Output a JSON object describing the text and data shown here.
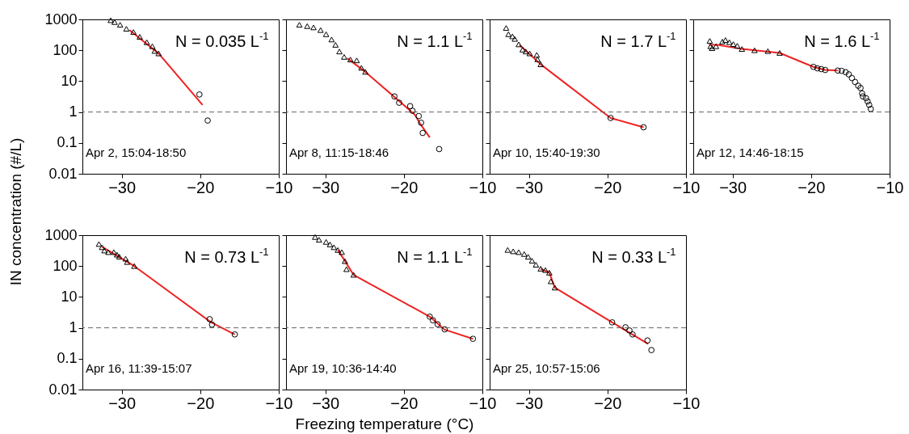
{
  "chart_data": [
    {
      "type": "scatter",
      "title": "N = 0.035 L$^{-1}$",
      "ylabel": "IN concentration (#/L)",
      "annotations": [
        "Apr 2, 15:04-18:50"
      ],
      "xlim": [
        -35,
        -10
      ],
      "xticks": [
        -30,
        -20,
        -10
      ],
      "ylim": [
        0.01,
        1000
      ],
      "yticks": [
        0.01,
        0.1,
        1,
        10,
        100,
        1000
      ],
      "log": "y",
      "ref_lines": [
        {
          "axis": "y",
          "value": 1,
          "color": "#666666",
          "line_style": "dashed"
        }
      ],
      "series": [
        {
          "type": "line",
          "color": "#ee2222",
          "marker": "none",
          "x": [
            -29.0,
            -25.3,
            -19.7
          ],
          "values": [
            450,
            79,
            1.7
          ]
        },
        {
          "type": "scatter",
          "marker": "triangle",
          "color": "#000000",
          "x": [
            -31.4,
            -30.9,
            -30.2,
            -29.4,
            -28.5,
            -27.7,
            -26.8,
            -26.1,
            -25.8,
            -25.3
          ],
          "values": [
            942,
            818,
            670,
            496,
            390,
            272,
            182,
            135,
            95,
            79
          ]
        },
        {
          "type": "scatter",
          "marker": "circle",
          "color": "#000000",
          "x": [
            -20.1,
            -19.05
          ],
          "values": [
            3.7,
            0.53
          ]
        }
      ]
    },
    {
      "type": "scatter",
      "title": "N = 1.1 L$^{-1}$",
      "annotations": [
        "Apr 8, 11:15-18:46"
      ],
      "xlim": [
        -35,
        -10
      ],
      "xticks": [
        -30,
        -20,
        -10
      ],
      "ylim": [
        0.01,
        1000
      ],
      "yticks": [
        0.01,
        0.1,
        1,
        10,
        100,
        1000
      ],
      "log": "y",
      "tick_labels": "x",
      "ref_lines": [
        {
          "axis": "y",
          "value": 1,
          "color": "#666666",
          "line_style": "dashed"
        }
      ],
      "series": [
        {
          "type": "line",
          "color": "#ee2222",
          "marker": "none",
          "x": [
            -27.2,
            -24.9,
            -18.6,
            -17.9,
            -16.7
          ],
          "values": [
            55,
            20,
            0.82,
            0.41,
            0.15
          ]
        },
        {
          "type": "scatter",
          "marker": "triangle",
          "color": "#000000",
          "x": [
            -33.3,
            -32.3,
            -31.5,
            -30.6,
            -29.9,
            -29.2,
            -28.7,
            -28.2,
            -27.6,
            -26.8,
            -26.0,
            -25.4,
            -24.9
          ],
          "values": [
            670,
            605,
            550,
            450,
            330,
            223,
            150,
            91,
            61,
            50,
            47,
            27,
            20
          ]
        },
        {
          "type": "scatter",
          "marker": "circle",
          "color": "#000000",
          "x": [
            -21.2,
            -20.6,
            -19.2,
            -18.9,
            -18.1,
            -17.8,
            -17.6,
            -15.5
          ],
          "values": [
            3.2,
            2.0,
            1.55,
            1.1,
            0.74,
            0.45,
            0.21,
            0.063
          ]
        }
      ]
    },
    {
      "type": "scatter",
      "title": "N = 1.7 L$^{-1}$",
      "annotations": [
        "Apr 10, 15:40-19:30"
      ],
      "xlim": [
        -35,
        -10
      ],
      "xticks": [
        -30,
        -20,
        -10
      ],
      "ylim": [
        0.01,
        1000
      ],
      "yticks": [
        0.01,
        0.1,
        1,
        10,
        100,
        1000
      ],
      "log": "y",
      "tick_labels": "x",
      "ref_lines": [
        {
          "axis": "y",
          "value": 1,
          "color": "#666666",
          "line_style": "dashed"
        }
      ],
      "series": [
        {
          "type": "line",
          "color": "#ee2222",
          "marker": "none",
          "x": [
            -31.2,
            -28.5,
            -19.6,
            -15.4
          ],
          "values": [
            150,
            35,
            0.64,
            0.32
          ]
        },
        {
          "type": "scatter",
          "marker": "triangle",
          "color": "#000000",
          "x": [
            -32.9,
            -32.6,
            -32.1,
            -31.8,
            -31.3,
            -30.8,
            -30.4,
            -29.9,
            -29.0,
            -28.9,
            -28.5
          ],
          "values": [
            527,
            331,
            282,
            233,
            155,
            105,
            91,
            79,
            71,
            51,
            35
          ]
        },
        {
          "type": "scatter",
          "marker": "circle",
          "color": "#000000",
          "x": [
            -19.6,
            -15.4
          ],
          "values": [
            0.64,
            0.32
          ]
        }
      ]
    },
    {
      "type": "scatter",
      "title": "N = 1.6 L$^{-1}$",
      "annotations": [
        "Apr 12, 14:46-18:15"
      ],
      "xlim": [
        -35,
        -10
      ],
      "xticks": [
        -30,
        -20,
        -10
      ],
      "ylim": [
        0.01,
        1000
      ],
      "yticks": [
        0.01,
        0.1,
        1,
        10,
        100,
        1000
      ],
      "log": "y",
      "tick_labels": "x",
      "ref_lines": [
        {
          "axis": "y",
          "value": 1,
          "color": "#666666",
          "line_style": "dashed"
        }
      ],
      "series": [
        {
          "type": "line",
          "color": "#ee2222",
          "marker": "none",
          "x": [
            -33.0,
            -31.9,
            -28.8,
            -24.0,
            -19.7,
            -18.2,
            -16.6
          ],
          "values": [
            150,
            150,
            110,
            82,
            29,
            23,
            22
          ]
        },
        {
          "type": "scatter",
          "marker": "triangle",
          "color": "#000000",
          "x": [
            -32.9,
            -32.8,
            -32.6,
            -32.1,
            -31.3,
            -30.9,
            -30.4,
            -29.9,
            -29.4,
            -28.8,
            -27.2,
            -25.5,
            -24.0
          ],
          "values": [
            201,
            135,
            117,
            135,
            190,
            214,
            182,
            158,
            140,
            110,
            100,
            94,
            82
          ]
        },
        {
          "type": "scatter",
          "marker": "circle",
          "color": "#000000",
          "x": [
            -19.7,
            -19.2,
            -18.7,
            -18.2,
            -16.6,
            -16.1,
            -15.6,
            -15.2,
            -14.8,
            -14.4,
            -14.0,
            -13.7,
            -13.5,
            -13.4,
            -13.0,
            -12.8,
            -12.6,
            -12.4
          ],
          "values": [
            29,
            26,
            24.5,
            23,
            22,
            21.5,
            19.5,
            16.6,
            12.6,
            9.4,
            7.1,
            6.0,
            4.0,
            3.2,
            2.8,
            2.2,
            1.7,
            1.26
          ]
        }
      ]
    },
    {
      "type": "scatter",
      "title": "N = 0.73 L$^{-1}$",
      "annotations": [
        "Apr 16, 11:39-15:07"
      ],
      "xlim": [
        -35,
        -10
      ],
      "xticks": [
        -30,
        -20,
        -10
      ],
      "ylim": [
        0.01,
        1000
      ],
      "yticks": [
        0.01,
        0.1,
        1,
        10,
        100,
        1000
      ],
      "log": "y",
      "ref_lines": [
        {
          "axis": "y",
          "value": 1,
          "color": "#666666",
          "line_style": "dashed"
        }
      ],
      "series": [
        {
          "type": "line",
          "color": "#ee2222",
          "marker": "none",
          "x": [
            -32.5,
            -28.4,
            -18.6,
            -15.6
          ],
          "values": [
            420,
            100,
            1.5,
            0.61
          ]
        },
        {
          "type": "scatter",
          "marker": "triangle",
          "color": "#000000",
          "x": [
            -32.9,
            -32.5,
            -32.2,
            -31.7,
            -31.0,
            -30.6,
            -30.3,
            -29.5,
            -29.3,
            -28.4
          ],
          "values": [
            517,
            407,
            318,
            282,
            282,
            233,
            201,
            173,
            135,
            100
          ]
        },
        {
          "type": "scatter",
          "marker": "circle",
          "color": "#000000",
          "x": [
            -18.8,
            -18.5,
            -15.6
          ],
          "values": [
            1.9,
            1.27,
            0.61
          ]
        }
      ]
    },
    {
      "type": "scatter",
      "title": "N = 1.1 L$^{-1}$",
      "xlabel": "Freezing temperature (°C)",
      "annotations": [
        "Apr 19, 10:36-14:40"
      ],
      "xlim": [
        -35,
        -10
      ],
      "xticks": [
        -30,
        -20,
        -10
      ],
      "ylim": [
        0.01,
        1000
      ],
      "yticks": [
        0.01,
        0.1,
        1,
        10,
        100,
        1000
      ],
      "log": "y",
      "tick_labels": "x",
      "ref_lines": [
        {
          "axis": "y",
          "value": 1,
          "color": "#666666",
          "line_style": "dashed"
        }
      ],
      "series": [
        {
          "type": "line",
          "color": "#ee2222",
          "marker": "none",
          "x": [
            -28.4,
            -27.6,
            -26.4,
            -16.7,
            -14.8,
            -11.2
          ],
          "values": [
            331,
            160,
            52,
            2.3,
            0.87,
            0.44
          ]
        },
        {
          "type": "scatter",
          "marker": "triangle",
          "color": "#000000",
          "x": [
            -31.3,
            -30.8,
            -29.9,
            -29.4,
            -28.9,
            -28.4,
            -27.9,
            -27.5,
            -27.3,
            -26.4
          ],
          "values": [
            870,
            710,
            605,
            500,
            407,
            331,
            282,
            144,
            79,
            52
          ]
        },
        {
          "type": "scatter",
          "marker": "circle",
          "color": "#000000",
          "x": [
            -16.7,
            -16.3,
            -15.7,
            -14.8,
            -11.2
          ],
          "values": [
            2.3,
            1.75,
            1.3,
            0.89,
            0.44
          ]
        }
      ]
    },
    {
      "type": "scatter",
      "title": "N = 0.33 L$^{-1}$",
      "annotations": [
        "Apr 25, 10:57-15:06"
      ],
      "xlim": [
        -35,
        -10
      ],
      "xticks": [
        -30,
        -20,
        -10
      ],
      "ylim": [
        0.01,
        1000
      ],
      "yticks": [
        0.01,
        0.1,
        1,
        10,
        100,
        1000
      ],
      "log": "y",
      "tick_labels": "x",
      "ref_lines": [
        {
          "axis": "y",
          "value": 1,
          "color": "#666666",
          "line_style": "dashed"
        }
      ],
      "series": [
        {
          "type": "line",
          "color": "#ee2222",
          "marker": "none",
          "x": [
            -28.5,
            -27.4,
            -26.7,
            -19.4,
            -14.8
          ],
          "values": [
            82,
            61,
            20,
            1.5,
            0.3
          ]
        },
        {
          "type": "scatter",
          "marker": "triangle",
          "color": "#000000",
          "x": [
            -32.7,
            -32.0,
            -31.3,
            -30.6,
            -30.1,
            -29.6,
            -29.1,
            -28.5,
            -27.9,
            -27.4,
            -27.2,
            -26.7
          ],
          "values": [
            333,
            300,
            282,
            245,
            200,
            149,
            110,
            82,
            74,
            61,
            32,
            20
          ]
        },
        {
          "type": "scatter",
          "marker": "circle",
          "color": "#000000",
          "x": [
            -19.4,
            -17.7,
            -17.2,
            -16.8,
            -14.9,
            -14.4
          ],
          "values": [
            1.5,
            1.04,
            0.82,
            0.61,
            0.39,
            0.19
          ]
        }
      ]
    }
  ]
}
